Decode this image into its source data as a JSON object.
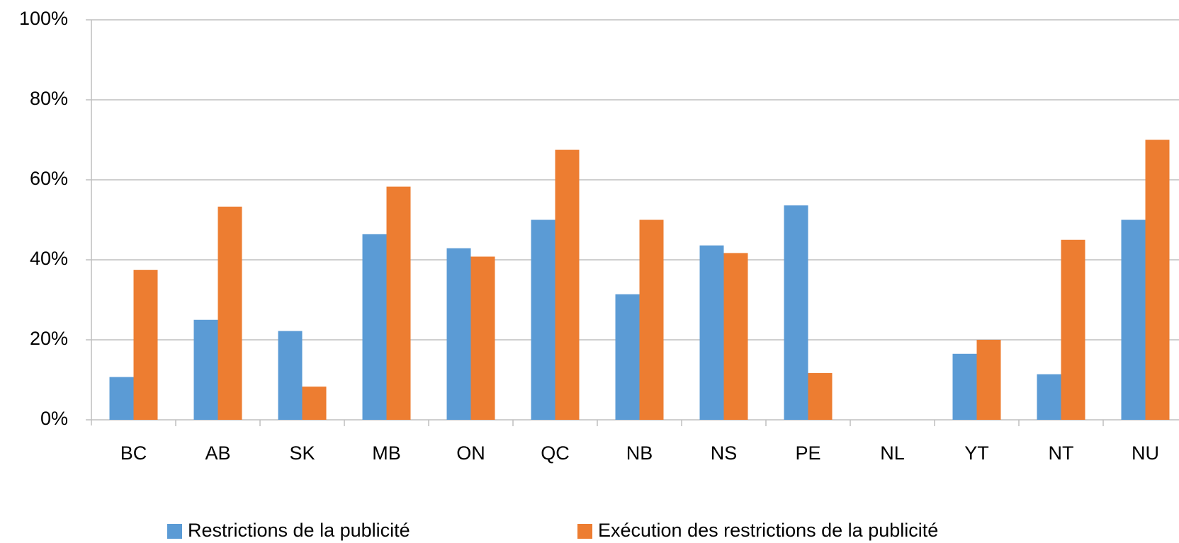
{
  "chart_data": {
    "type": "bar",
    "categories": [
      "BC",
      "AB",
      "SK",
      "MB",
      "ON",
      "QC",
      "NB",
      "NS",
      "PE",
      "NL",
      "YT",
      "NT",
      "NU"
    ],
    "series": [
      {
        "name": "Restrictions de la publicité",
        "color": "#5b9bd5",
        "values": [
          10.7,
          25,
          22.2,
          46.4,
          42.9,
          50,
          31.4,
          43.6,
          53.6,
          0,
          16.5,
          11.4,
          50
        ]
      },
      {
        "name": "Exécution des restrictions de la publicité",
        "color": "#ed7d31",
        "values": [
          37.5,
          53.3,
          8.3,
          58.3,
          40.8,
          67.5,
          50,
          41.7,
          11.7,
          0,
          20,
          45,
          70
        ]
      }
    ],
    "ylim": [
      0,
      100
    ],
    "yticks": [
      {
        "value": 0,
        "label": "0%"
      },
      {
        "value": 20,
        "label": "20%"
      },
      {
        "value": 40,
        "label": "40%"
      },
      {
        "value": 60,
        "label": "60%"
      },
      {
        "value": 80,
        "label": "80%"
      },
      {
        "value": 100,
        "label": "100%"
      }
    ],
    "grid": true,
    "legend": "bottom"
  }
}
